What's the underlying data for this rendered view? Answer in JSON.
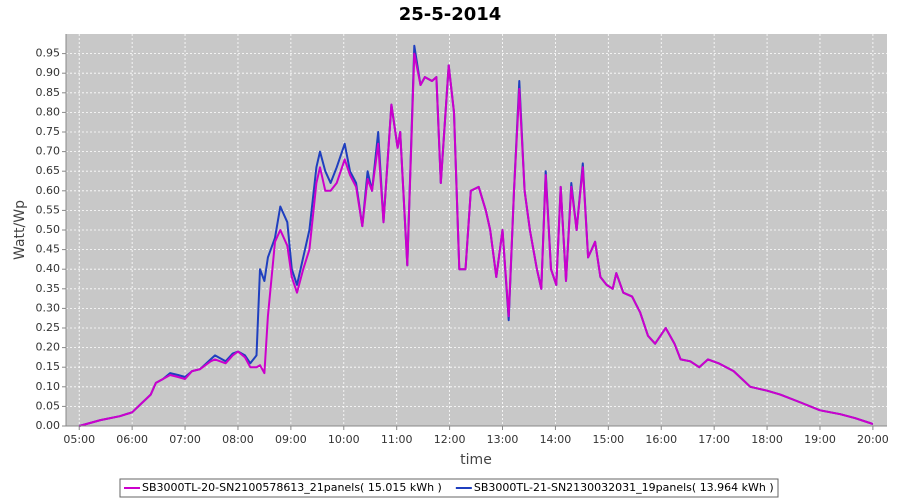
{
  "chart_data": {
    "type": "line",
    "title": "25-5-2014",
    "x_label": "time",
    "y_label": "Watt/Wp",
    "grid": true,
    "legend": "bottom",
    "xlim": [
      "04:45",
      "20:16"
    ],
    "ylim": [
      0,
      1.0
    ],
    "xticks": [
      "05:00",
      "06:00",
      "07:00",
      "08:00",
      "09:00",
      "10:00",
      "11:00",
      "12:00",
      "13:00",
      "14:00",
      "15:00",
      "16:00",
      "17:00",
      "18:00",
      "19:00",
      "20:00"
    ],
    "yticks": [
      {
        "value": 0,
        "label": "0.00"
      },
      {
        "value": 0.05,
        "label": "0.05"
      },
      {
        "value": 0.1,
        "label": "0.10"
      },
      {
        "value": 0.15,
        "label": "0.15"
      },
      {
        "value": 0.2,
        "label": "0.20"
      },
      {
        "value": 0.25,
        "label": "0.25"
      },
      {
        "value": 0.3,
        "label": "0.30"
      },
      {
        "value": 0.35,
        "label": "0.35"
      },
      {
        "value": 0.4,
        "label": "0.40"
      },
      {
        "value": 0.45,
        "label": "0.45"
      },
      {
        "value": 0.5,
        "label": "0.50"
      },
      {
        "value": 0.55,
        "label": "0.55"
      },
      {
        "value": 0.6,
        "label": "0.60"
      },
      {
        "value": 0.65,
        "label": "0.65"
      },
      {
        "value": 0.7,
        "label": "0.70"
      },
      {
        "value": 0.75,
        "label": "0.75"
      },
      {
        "value": 0.8,
        "label": "0.80"
      },
      {
        "value": 0.85,
        "label": "0.85"
      },
      {
        "value": 0.9,
        "label": "0.90"
      },
      {
        "value": 0.95,
        "label": "0.95"
      }
    ],
    "x": [
      "05:00",
      "05:24",
      "05:46",
      "06:00",
      "06:21",
      "06:27",
      "06:35",
      "06:43",
      "06:52",
      "07:00",
      "07:08",
      "07:17",
      "07:29",
      "07:34",
      "07:46",
      "07:54",
      "08:00",
      "08:08",
      "08:14",
      "08:21",
      "08:25",
      "08:30",
      "08:34",
      "08:42",
      "08:48",
      "08:56",
      "09:01",
      "09:07",
      "09:14",
      "09:21",
      "09:29",
      "09:33",
      "09:39",
      "09:45",
      "09:52",
      "10:01",
      "10:07",
      "10:14",
      "10:21",
      "10:27",
      "10:32",
      "10:39",
      "10:45",
      "10:54",
      "11:01",
      "11:04",
      "11:12",
      "11:20",
      "11:27",
      "11:32",
      "11:40",
      "11:45",
      "11:50",
      "11:59",
      "12:05",
      "12:11",
      "12:18",
      "12:24",
      "12:33",
      "12:41",
      "12:46",
      "12:53",
      "13:00",
      "13:07",
      "13:13",
      "13:19",
      "13:25",
      "13:31",
      "13:39",
      "13:44",
      "13:49",
      "13:55",
      "14:01",
      "14:06",
      "14:12",
      "14:18",
      "14:24",
      "14:31",
      "14:37",
      "14:45",
      "14:51",
      "14:58",
      "15:05",
      "15:09",
      "15:17",
      "15:27",
      "15:36",
      "15:45",
      "15:53",
      "16:05",
      "16:15",
      "16:22",
      "16:33",
      "16:43",
      "16:53",
      "17:05",
      "17:22",
      "17:41",
      "18:00",
      "18:15",
      "18:38",
      "19:00",
      "19:23",
      "19:40",
      "20:00"
    ],
    "series": [
      {
        "name": "SB3000TL-20-SN2100578613_21panels( 15.015 kWh )",
        "color": "#cc00cc",
        "values": [
          0,
          0.015,
          0.025,
          0.035,
          0.08,
          0.11,
          0.12,
          0.13,
          0.125,
          0.12,
          0.14,
          0.145,
          0.165,
          0.17,
          0.16,
          0.18,
          0.19,
          0.175,
          0.15,
          0.15,
          0.155,
          0.135,
          0.28,
          0.47,
          0.5,
          0.46,
          0.38,
          0.34,
          0.4,
          0.45,
          0.62,
          0.66,
          0.6,
          0.6,
          0.62,
          0.68,
          0.64,
          0.61,
          0.51,
          0.63,
          0.6,
          0.72,
          0.52,
          0.82,
          0.71,
          0.75,
          0.41,
          0.95,
          0.87,
          0.89,
          0.88,
          0.89,
          0.62,
          0.92,
          0.8,
          0.4,
          0.4,
          0.6,
          0.61,
          0.55,
          0.5,
          0.38,
          0.5,
          0.28,
          0.6,
          0.86,
          0.6,
          0.5,
          0.4,
          0.35,
          0.64,
          0.4,
          0.36,
          0.61,
          0.37,
          0.61,
          0.5,
          0.66,
          0.43,
          0.47,
          0.38,
          0.36,
          0.35,
          0.39,
          0.34,
          0.33,
          0.29,
          0.23,
          0.21,
          0.25,
          0.21,
          0.17,
          0.165,
          0.15,
          0.17,
          0.16,
          0.14,
          0.1,
          0.09,
          0.08,
          0.06,
          0.04,
          0.03,
          0.02,
          0.005
        ]
      },
      {
        "name": "SB3000TL-21-SN2130032031_19panels( 13.964 kWh )",
        "color": "#1f3fbf",
        "values": [
          0,
          0.015,
          0.025,
          0.035,
          0.08,
          0.11,
          0.12,
          0.135,
          0.13,
          0.125,
          0.14,
          0.145,
          0.17,
          0.18,
          0.165,
          0.185,
          0.19,
          0.18,
          0.16,
          0.18,
          0.4,
          0.37,
          0.43,
          0.48,
          0.56,
          0.52,
          0.4,
          0.36,
          0.43,
          0.5,
          0.66,
          0.7,
          0.65,
          0.62,
          0.66,
          0.72,
          0.65,
          0.62,
          0.51,
          0.65,
          0.6,
          0.75,
          0.52,
          0.82,
          0.71,
          0.75,
          0.41,
          0.97,
          0.87,
          0.89,
          0.88,
          0.89,
          0.62,
          0.92,
          0.8,
          0.4,
          0.4,
          0.6,
          0.61,
          0.55,
          0.5,
          0.38,
          0.5,
          0.27,
          0.6,
          0.88,
          0.6,
          0.5,
          0.4,
          0.35,
          0.65,
          0.4,
          0.36,
          0.61,
          0.37,
          0.62,
          0.5,
          0.67,
          0.43,
          0.47,
          0.38,
          0.36,
          0.35,
          0.39,
          0.34,
          0.33,
          0.29,
          0.23,
          0.21,
          0.25,
          0.21,
          0.17,
          0.165,
          0.15,
          0.17,
          0.16,
          0.14,
          0.1,
          0.09,
          0.08,
          0.06,
          0.04,
          0.03,
          0.02,
          0.005
        ]
      }
    ]
  }
}
